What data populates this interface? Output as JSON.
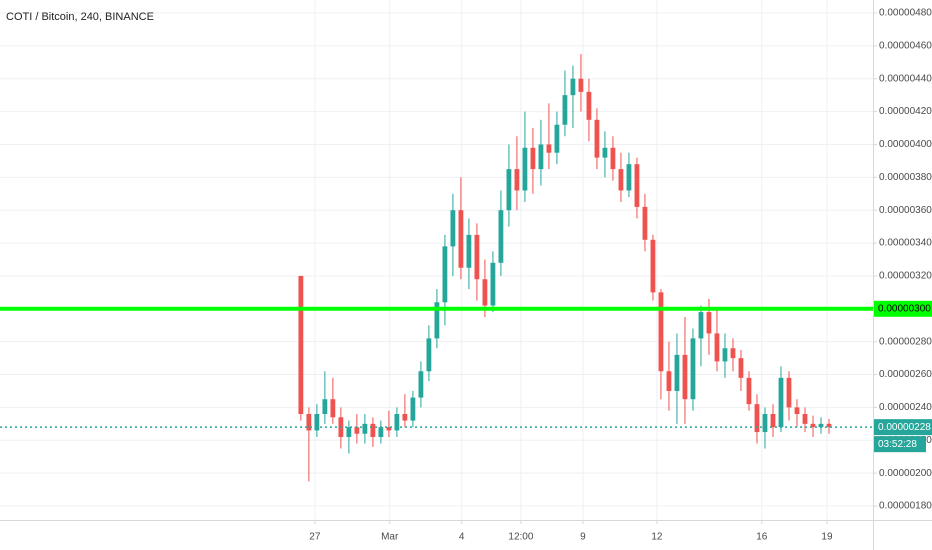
{
  "chart_data": {
    "type": "candlestick",
    "title": "COTI / Bitcoin, 240, BINANCE",
    "up_color": "#26a69a",
    "down_color": "#ef5350",
    "grid": true,
    "open": [
      3.2e-06,
      2.36e-06,
      2.26e-06,
      2.36e-06,
      2.45e-06,
      2.34e-06,
      2.22e-06,
      2.28e-06,
      2.24e-06,
      2.3e-06,
      2.22e-06,
      2.28e-06,
      2.26e-06,
      2.36e-06,
      2.32e-06,
      2.46e-06,
      2.62e-06,
      2.82e-06,
      3.04e-06,
      3.38e-06,
      3.6e-06,
      3.25e-06,
      3.45e-06,
      3.18e-06,
      3.02e-06,
      3.28e-06,
      3.6e-06,
      3.85e-06,
      3.72e-06,
      3.98e-06,
      3.85e-06,
      4e-06,
      3.95e-06,
      4.12e-06,
      4.3e-06,
      4.4e-06,
      4.32e-06,
      4.15e-06,
      3.92e-06,
      3.98e-06,
      3.85e-06,
      3.72e-06,
      3.88e-06,
      3.62e-06,
      3.42e-06,
      3.1e-06,
      2.62e-06,
      2.5e-06,
      2.72e-06,
      2.45e-06,
      2.82e-06,
      2.98e-06,
      2.85e-06,
      2.68e-06,
      2.76e-06,
      2.7e-06,
      2.58e-06,
      2.42e-06,
      2.25e-06,
      2.36e-06,
      2.28e-06,
      2.58e-06,
      2.4e-06,
      2.36e-06,
      2.3e-06,
      2.28e-06,
      2.3e-06
    ],
    "high": [
      3.2e-06,
      2.4e-06,
      2.42e-06,
      2.62e-06,
      2.58e-06,
      2.4e-06,
      2.32e-06,
      2.36e-06,
      2.36e-06,
      2.34e-06,
      2.32e-06,
      2.38e-06,
      2.4e-06,
      2.48e-06,
      2.5e-06,
      2.68e-06,
      2.9e-06,
      3.12e-06,
      3.45e-06,
      3.7e-06,
      3.8e-06,
      3.55e-06,
      3.52e-06,
      3.3e-06,
      3.35e-06,
      3.72e-06,
      4e-06,
      4.05e-06,
      4.2e-06,
      4.1e-06,
      4.15e-06,
      4.25e-06,
      4.2e-06,
      4.45e-06,
      4.48e-06,
      4.55e-06,
      4.4e-06,
      4.22e-06,
      4.08e-06,
      4.05e-06,
      3.95e-06,
      3.95e-06,
      3.92e-06,
      3.7e-06,
      3.45e-06,
      3.12e-06,
      2.8e-06,
      2.85e-06,
      2.95e-06,
      2.88e-06,
      3.02e-06,
      3.06e-06,
      3e-06,
      2.85e-06,
      2.82e-06,
      2.75e-06,
      2.62e-06,
      2.48e-06,
      2.4e-06,
      2.42e-06,
      2.65e-06,
      2.62e-06,
      2.45e-06,
      2.4e-06,
      2.35e-06,
      2.34e-06,
      2.33e-06
    ],
    "low": [
      2.32e-06,
      1.95e-06,
      2.22e-06,
      2.3e-06,
      2.3e-06,
      2.15e-06,
      2.12e-06,
      2.18e-06,
      2.18e-06,
      2.16e-06,
      2.18e-06,
      2.22e-06,
      2.22e-06,
      2.28e-06,
      2.28e-06,
      2.4e-06,
      2.56e-06,
      2.76e-06,
      2.9e-06,
      3.2e-06,
      3.18e-06,
      3.12e-06,
      3.05e-06,
      2.95e-06,
      2.98e-06,
      3.2e-06,
      3.5e-06,
      3.6e-06,
      3.65e-06,
      3.7e-06,
      3.75e-06,
      3.85e-06,
      3.88e-06,
      4.05e-06,
      4.1e-06,
      4.2e-06,
      4.02e-06,
      3.85e-06,
      3.8e-06,
      3.78e-06,
      3.65e-06,
      3.68e-06,
      3.55e-06,
      3.35e-06,
      3.05e-06,
      2.45e-06,
      2.38e-06,
      2.3e-06,
      2.3e-06,
      2.38e-06,
      2.65e-06,
      2.72e-06,
      2.62e-06,
      2.58e-06,
      2.62e-06,
      2.5e-06,
      2.38e-06,
      2.18e-06,
      2.15e-06,
      2.22e-06,
      2.25e-06,
      2.32e-06,
      2.28e-06,
      2.25e-06,
      2.22e-06,
      2.24e-06,
      2.24e-06
    ],
    "close": [
      2.36e-06,
      2.26e-06,
      2.36e-06,
      2.45e-06,
      2.34e-06,
      2.22e-06,
      2.28e-06,
      2.24e-06,
      2.3e-06,
      2.22e-06,
      2.28e-06,
      2.26e-06,
      2.36e-06,
      2.32e-06,
      2.46e-06,
      2.62e-06,
      2.82e-06,
      3.04e-06,
      3.38e-06,
      3.6e-06,
      3.25e-06,
      3.45e-06,
      3.18e-06,
      3.02e-06,
      3.28e-06,
      3.6e-06,
      3.85e-06,
      3.72e-06,
      3.98e-06,
      3.85e-06,
      4e-06,
      3.95e-06,
      4.12e-06,
      4.3e-06,
      4.4e-06,
      4.32e-06,
      4.15e-06,
      3.92e-06,
      3.98e-06,
      3.85e-06,
      3.72e-06,
      3.88e-06,
      3.62e-06,
      3.42e-06,
      3.1e-06,
      2.62e-06,
      2.5e-06,
      2.72e-06,
      2.45e-06,
      2.82e-06,
      2.98e-06,
      2.85e-06,
      2.68e-06,
      2.76e-06,
      2.7e-06,
      2.58e-06,
      2.42e-06,
      2.25e-06,
      2.36e-06,
      2.28e-06,
      2.58e-06,
      2.4e-06,
      2.36e-06,
      2.3e-06,
      2.28e-06,
      2.3e-06,
      2.28e-06
    ],
    "xlim": [
      -37.6,
      71.5
    ],
    "xticks": [
      {
        "value": 1.75,
        "label": "27"
      },
      {
        "value": 11.1,
        "label": "Mar"
      },
      {
        "value": 20.1,
        "label": "4"
      },
      {
        "value": 27.5,
        "label": "12:00"
      },
      {
        "value": 35.25,
        "label": "9"
      },
      {
        "value": 44.5,
        "label": "12"
      },
      {
        "value": 57.6,
        "label": "16"
      },
      {
        "value": 65.75,
        "label": "19"
      }
    ],
    "ylim": [
      1.715e-06,
      4.879e-06
    ],
    "yticks": [
      {
        "value": 1.8e-06,
        "label": "0.00000180"
      },
      {
        "value": 2e-06,
        "label": "0.00000200"
      },
      {
        "value": 2.2e-06,
        "label": "0.00000220"
      },
      {
        "value": 2.4e-06,
        "label": "0.00000240"
      },
      {
        "value": 2.6e-06,
        "label": "0.00000260"
      },
      {
        "value": 2.8e-06,
        "label": "0.00000280"
      },
      {
        "value": 3e-06,
        "label": "0.00000300"
      },
      {
        "value": 3.2e-06,
        "label": "0.00000320"
      },
      {
        "value": 3.4e-06,
        "label": "0.00000340"
      },
      {
        "value": 3.6e-06,
        "label": "0.00000360"
      },
      {
        "value": 3.8e-06,
        "label": "0.00000380"
      },
      {
        "value": 4e-06,
        "label": "0.00000400"
      },
      {
        "value": 4.2e-06,
        "label": "0.00000420"
      },
      {
        "value": 4.4e-06,
        "label": "0.00000440"
      },
      {
        "value": 4.6e-06,
        "label": "0.00000460"
      },
      {
        "value": 4.8e-06,
        "label": "0.00000480"
      }
    ],
    "horizontal_lines": [
      {
        "value": 3e-06,
        "label": "0.00000300",
        "color": "#00ff00",
        "style": "solid"
      },
      {
        "value": 2.28e-06,
        "label": "0.00000228",
        "color": "#26a69a",
        "style": "dotted"
      }
    ],
    "countdown": "03:52:28"
  }
}
